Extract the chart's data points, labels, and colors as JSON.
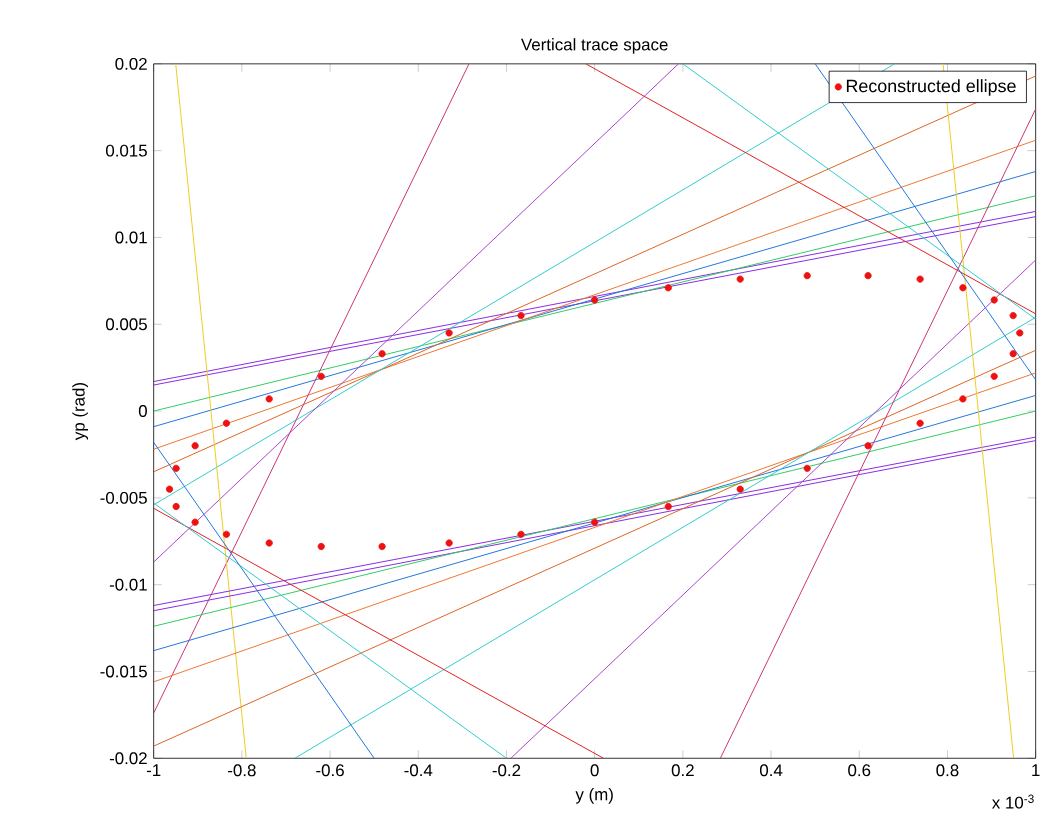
{
  "chart_data": {
    "type": "line",
    "title": "Vertical trace space",
    "xlabel": "y (m)",
    "ylabel": "yp (rad)",
    "annotations": [
      "x 10$^{-3}$"
    ],
    "xlim": [
      -1,
      1
    ],
    "xticks": [
      -1,
      -0.8,
      -0.6,
      -0.4,
      -0.2,
      0,
      0.2,
      0.4,
      0.6,
      0.8,
      1
    ],
    "ylim": [
      -0.02,
      0.02
    ],
    "yticks": [
      -0.02,
      -0.015,
      -0.01,
      -0.005,
      0,
      0.005,
      0.01,
      0.015,
      0.02
    ],
    "legend": "top right",
    "series": [
      {
        "color": "#8a2be2",
        "x": [
          -1,
          1
        ],
        "values": [
          0.0017,
          0.0115
        ]
      },
      {
        "color": "#8a2be2",
        "x": [
          -1,
          1
        ],
        "values": [
          0.0015,
          0.0112
        ]
      },
      {
        "color": "#33cc66",
        "x": [
          -1,
          1
        ],
        "values": [
          0.0,
          0.0124
        ]
      },
      {
        "color": "#2277dd",
        "x": [
          -1,
          1
        ],
        "values": [
          -0.0009,
          0.0138
        ]
      },
      {
        "color": "#ee7733",
        "x": [
          -1,
          1
        ],
        "values": [
          -0.0022,
          0.0156
        ]
      },
      {
        "color": "#dd6622",
        "x": [
          -1,
          1
        ],
        "values": [
          -0.0035,
          0.0193
        ]
      },
      {
        "color": "#33cccc",
        "x": [
          -1,
          0.68
        ],
        "values": [
          -0.0054,
          0.02
        ]
      },
      {
        "color": "#cc3377",
        "x": [
          -1,
          -0.285
        ],
        "values": [
          -0.0174,
          0.02
        ]
      },
      {
        "color": "#aa44cc",
        "x": [
          -1,
          0.19
        ],
        "values": [
          -0.0087,
          0.02
        ]
      },
      {
        "color": "#eecc22",
        "x": [
          -0.95,
          -0.79
        ],
        "values": [
          0.02,
          -0.02
        ]
      },
      {
        "color": "#8a2be2",
        "x": [
          -1,
          1
        ],
        "values": [
          -0.0115,
          -0.0017
        ]
      },
      {
        "color": "#8a2be2",
        "x": [
          -1,
          1
        ],
        "values": [
          -0.0112,
          -0.0015
        ]
      },
      {
        "color": "#33cc66",
        "x": [
          -1,
          1
        ],
        "values": [
          -0.0124,
          0.0
        ]
      },
      {
        "color": "#2277dd",
        "x": [
          -1,
          1
        ],
        "values": [
          -0.0138,
          0.0009
        ]
      },
      {
        "color": "#ee7733",
        "x": [
          -1,
          1
        ],
        "values": [
          -0.0156,
          0.0022
        ]
      },
      {
        "color": "#dd6622",
        "x": [
          -1,
          1
        ],
        "values": [
          -0.0193,
          0.0035
        ]
      },
      {
        "color": "#33cccc",
        "x": [
          -0.68,
          1
        ],
        "values": [
          -0.02,
          0.0054
        ]
      },
      {
        "color": "#cc3377",
        "x": [
          0.285,
          1
        ],
        "values": [
          -0.02,
          0.0174
        ]
      },
      {
        "color": "#aa44cc",
        "x": [
          -0.19,
          1
        ],
        "values": [
          -0.02,
          0.0087
        ]
      },
      {
        "color": "#eecc22",
        "x": [
          0.79,
          0.95
        ],
        "values": [
          0.02,
          -0.02
        ]
      },
      {
        "color": "#dd2222",
        "x": [
          -1,
          0.02
        ],
        "values": [
          -0.0056,
          -0.02
        ]
      },
      {
        "color": "#dd2222",
        "x": [
          -0.02,
          1
        ],
        "values": [
          0.02,
          0.0056
        ]
      },
      {
        "color": "#33cccc",
        "x": [
          -1,
          -0.2
        ],
        "values": [
          -0.0053,
          -0.02
        ]
      },
      {
        "color": "#33cccc",
        "x": [
          0.2,
          1
        ],
        "values": [
          0.02,
          0.0053
        ]
      },
      {
        "color": "#2277dd",
        "x": [
          -1,
          -0.5
        ],
        "values": [
          -0.0018,
          -0.02
        ]
      },
      {
        "color": "#2277dd",
        "x": [
          0.5,
          1
        ],
        "values": [
          0.02,
          0.0018
        ]
      },
      {
        "name": "Reconstructed ellipse",
        "type": "scatter",
        "color": "#ee1111",
        "x": [
          0.964,
          0.949,
          0.906,
          0.835,
          0.738,
          0.62,
          0.482,
          0.33,
          0.167,
          0,
          -0.167,
          -0.33,
          -0.482,
          -0.62,
          -0.738,
          -0.835,
          -0.906,
          -0.949,
          -0.964,
          -0.949,
          -0.906,
          -0.835,
          -0.738,
          -0.62,
          -0.482,
          -0.33,
          -0.167,
          0,
          0.167,
          0.33,
          0.482,
          0.62,
          0.738,
          0.835,
          0.906,
          0.949
        ],
        "values": [
          0.0045,
          0.0055,
          0.0064,
          0.0071,
          0.0076,
          0.0078,
          0.0078,
          0.0076,
          0.0071,
          0.0064,
          0.0055,
          0.0045,
          0.0033,
          0.002,
          0.0007,
          -0.0007,
          -0.002,
          -0.0033,
          -0.0045,
          -0.0055,
          -0.0064,
          -0.0071,
          -0.0076,
          -0.0078,
          -0.0078,
          -0.0076,
          -0.0071,
          -0.0064,
          -0.0055,
          -0.0045,
          -0.0033,
          -0.002,
          -0.0007,
          0.0007,
          0.002,
          0.0033
        ]
      }
    ]
  }
}
